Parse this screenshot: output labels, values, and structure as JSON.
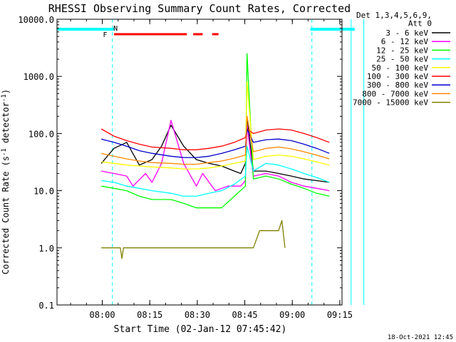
{
  "chart_data": {
    "type": "line",
    "title": "RHESSI Observing Summary Count Rates, Corrected",
    "xlabel": "Start Time (02-Jan-12 07:45:42)",
    "ylabel_main": "Corrected Count Rate (s",
    "ylabel_sup": "-1",
    "ylabel_mid": " detector",
    "ylabel_sup2": "-1",
    "ylabel_end": ")",
    "yscale": "log",
    "ylim": [
      0.1,
      10000
    ],
    "xlim_minutes": [
      0,
      90
    ],
    "x_ticks": [
      {
        "label": "08:00",
        "min": 14.3
      },
      {
        "label": "08:15",
        "min": 29.3
      },
      {
        "label": "08:30",
        "min": 44.3
      },
      {
        "label": "08:45",
        "min": 59.3
      },
      {
        "label": "09:00",
        "min": 74.3
      },
      {
        "label": "09:15",
        "min": 89.3
      }
    ],
    "y_ticks": [
      {
        "label": "0.1",
        "value": 0.1
      },
      {
        "label": "1.0",
        "value": 1
      },
      {
        "label": "10.0",
        "value": 10
      },
      {
        "label": "100.0",
        "value": 100
      },
      {
        "label": "1000.0",
        "value": 1000
      },
      {
        "label": "10000.0",
        "value": 10000
      }
    ],
    "legend_header": [
      "Det 1,3,4,5,6,9,",
      "Att 0"
    ],
    "series": [
      {
        "name": "3 - 6 keV",
        "color": "#000000",
        "x": [
          14,
          18,
          22,
          26,
          30,
          33,
          36,
          40,
          44,
          48,
          52,
          56,
          58,
          59.5,
          60,
          62,
          66,
          70,
          74,
          78,
          82,
          86
        ],
        "values": [
          30,
          55,
          70,
          28,
          35,
          60,
          140,
          60,
          35,
          30,
          27,
          22,
          20,
          30,
          200,
          22,
          22,
          20,
          18,
          16,
          15,
          14
        ]
      },
      {
        "name": "6 - 12 keV",
        "color": "#ff00ff",
        "x": [
          14,
          18,
          22,
          24,
          28,
          30,
          33,
          36,
          40,
          44,
          46,
          50,
          54,
          58,
          59.5,
          60,
          62,
          66,
          70,
          74,
          78,
          82,
          86
        ],
        "values": [
          22,
          20,
          18,
          12,
          20,
          14,
          30,
          170,
          30,
          12,
          20,
          10,
          12,
          12,
          15,
          140,
          18,
          20,
          18,
          14,
          12,
          11,
          10
        ]
      },
      {
        "name": "12 - 25 keV",
        "color": "#00ff00",
        "x": [
          14,
          18,
          22,
          26,
          30,
          36,
          40,
          44,
          48,
          52,
          56,
          59.5,
          60,
          62,
          66,
          70,
          74,
          78,
          82,
          86
        ],
        "values": [
          12,
          11,
          10,
          8,
          7,
          7,
          6,
          5,
          5,
          5,
          8,
          12,
          2500,
          16,
          18,
          16,
          13,
          11,
          9,
          8
        ]
      },
      {
        "name": "25 - 50 keV",
        "color": "#00ffff",
        "x": [
          14,
          18,
          22,
          26,
          30,
          36,
          40,
          44,
          48,
          52,
          56,
          59.5,
          60,
          62,
          66,
          70,
          74,
          78,
          82,
          86
        ],
        "values": [
          15,
          14,
          12,
          11,
          10,
          9,
          8,
          8,
          9,
          10,
          13,
          18,
          60,
          22,
          30,
          28,
          24,
          20,
          17,
          14
        ]
      },
      {
        "name": "50 - 100 keV",
        "color": "#ffff00",
        "x": [
          14,
          18,
          22,
          26,
          30,
          36,
          40,
          44,
          48,
          52,
          56,
          59.5,
          60,
          62,
          66,
          70,
          74,
          78,
          82,
          86
        ],
        "values": [
          32,
          30,
          28,
          27,
          26,
          25,
          24,
          24,
          25,
          27,
          30,
          33,
          800,
          35,
          40,
          42,
          40,
          36,
          32,
          28
        ]
      },
      {
        "name": "100 - 300 keV",
        "color": "#ff0000",
        "x": [
          14,
          18,
          22,
          26,
          30,
          36,
          40,
          44,
          48,
          52,
          56,
          59.5,
          60,
          62,
          66,
          70,
          74,
          78,
          82,
          86
        ],
        "values": [
          120,
          90,
          75,
          65,
          58,
          55,
          52,
          52,
          55,
          60,
          70,
          85,
          120,
          100,
          115,
          120,
          115,
          100,
          85,
          70
        ]
      },
      {
        "name": "300 - 800 keV",
        "color": "#0000cc",
        "x": [
          14,
          18,
          22,
          26,
          30,
          36,
          40,
          44,
          48,
          52,
          56,
          59.5,
          60,
          62,
          66,
          70,
          74,
          78,
          82,
          86
        ],
        "values": [
          80,
          70,
          60,
          50,
          45,
          40,
          38,
          38,
          40,
          45,
          52,
          60,
          120,
          70,
          78,
          80,
          75,
          65,
          55,
          45
        ]
      },
      {
        "name": "800 - 7000 keV",
        "color": "#ff8800",
        "x": [
          14,
          18,
          22,
          26,
          30,
          36,
          40,
          44,
          48,
          52,
          56,
          59.5,
          60,
          62,
          66,
          70,
          74,
          78,
          82,
          86
        ],
        "values": [
          45,
          40,
          36,
          33,
          31,
          30,
          29,
          29,
          31,
          33,
          37,
          42,
          200,
          48,
          55,
          58,
          54,
          48,
          42,
          36
        ]
      },
      {
        "name": "7000 - 15000 keV",
        "color": "#808000",
        "x": [
          14,
          20,
          20.5,
          21,
          48,
          56,
          58,
          60,
          62,
          64,
          66,
          68,
          70,
          71,
          72
        ],
        "values": [
          1.0,
          1.0,
          0.65,
          1.0,
          1.0,
          1.0,
          1.0,
          1.0,
          1.0,
          2.0,
          2.0,
          2.0,
          2.0,
          3.0,
          1.0
        ]
      }
    ],
    "annotations": [
      {
        "text": "F",
        "color": "#ff0000"
      },
      {
        "text": "N",
        "color": "#00ffff"
      }
    ],
    "saa_bars_minutes": [
      [
        0,
        18
      ],
      [
        80,
        94
      ]
    ],
    "night_lines_minutes": [
      17.5,
      80.5
    ],
    "orbit_lines_minutes": [
      93,
      97
    ],
    "flare_segments_minutes": [
      [
        18,
        41
      ],
      [
        43,
        46
      ],
      [
        49,
        51
      ]
    ],
    "timestamp": "18-Oct-2021 12:45"
  }
}
